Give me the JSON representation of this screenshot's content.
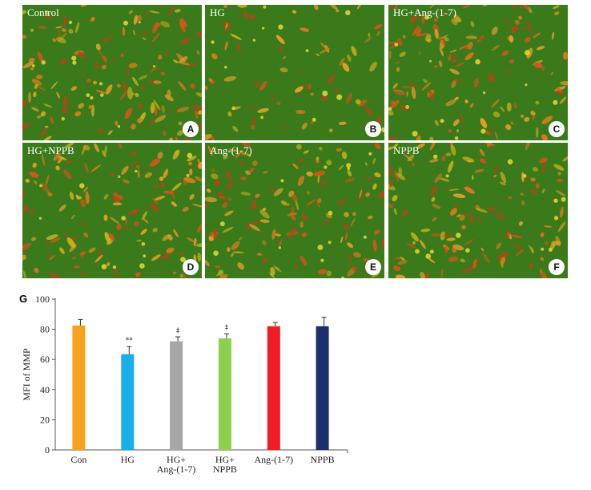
{
  "panels": [
    {
      "id": "A",
      "label": "Control",
      "letter": "A"
    },
    {
      "id": "B",
      "label": "HG",
      "letter": "B"
    },
    {
      "id": "C",
      "label": "HG+Ang-(1-7)",
      "letter": "C"
    },
    {
      "id": "D",
      "label": "HG+NPPB",
      "letter": "D"
    },
    {
      "id": "E",
      "label": "Ang-(1-7)",
      "letter": "E"
    },
    {
      "id": "F",
      "label": "NPPB",
      "letter": "F"
    }
  ],
  "chart_panel_letter": "G",
  "chart_data": {
    "type": "bar",
    "title": "",
    "ylabel": "MFI of MMP",
    "xlabel": "",
    "ylim": [
      0,
      100
    ],
    "yticks": [
      0,
      20,
      40,
      60,
      80,
      100
    ],
    "categories": [
      [
        "Con"
      ],
      [
        "HG"
      ],
      [
        "HG+",
        "Ang-(1-7)"
      ],
      [
        "HG+",
        "NPPB"
      ],
      [
        "Ang-(1-7)"
      ],
      [
        "NPPB"
      ]
    ],
    "values": [
      82.5,
      63.5,
      72,
      74,
      82,
      82
    ],
    "errors": [
      4,
      5,
      3,
      3,
      2.5,
      6
    ],
    "annotations": [
      "",
      "**",
      "‡",
      "‡",
      "",
      ""
    ],
    "colors": [
      "#f7a21b",
      "#19aee8",
      "#a6a6a6",
      "#8ccf4d",
      "#ee1c25",
      "#1b2f6b"
    ],
    "grid": false
  }
}
